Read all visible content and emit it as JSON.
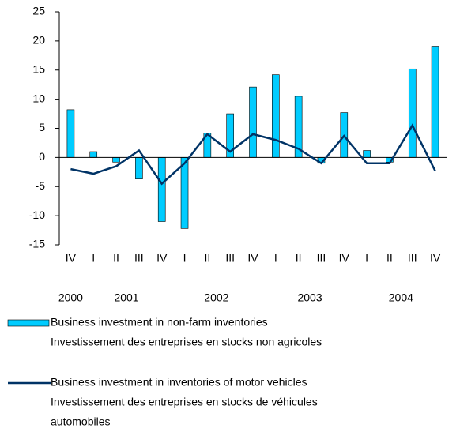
{
  "chart_data": {
    "type": "bar",
    "categories": [
      "IV",
      "I",
      "II",
      "III",
      "IV",
      "I",
      "II",
      "III",
      "IV",
      "I",
      "II",
      "III",
      "IV",
      "I",
      "II",
      "III",
      "IV"
    ],
    "year_labels": [
      "2000",
      "2001",
      "2002",
      "2003",
      "2004"
    ],
    "series": [
      {
        "type": "bar",
        "name": [
          "Business investment in non-farm inventories",
          "Investissement des entreprises en stocks non agricoles"
        ],
        "color": "#00ccff",
        "values": [
          8.2,
          1.0,
          -0.8,
          -3.7,
          -11.0,
          -12.2,
          4.2,
          7.5,
          12.1,
          14.2,
          10.5,
          -1.0,
          7.7,
          1.2,
          -0.8,
          15.2,
          19.1
        ]
      },
      {
        "type": "line",
        "name": [
          "Business investment in inventories of motor vehicles",
          "Investissement des entreprises en stocks de véhicules",
          "automobiles"
        ],
        "color": "#003366",
        "values": [
          -2.0,
          -2.8,
          -1.5,
          1.2,
          -4.5,
          -1.0,
          4.0,
          1.0,
          4.0,
          3.0,
          1.5,
          -1.0,
          3.7,
          -1.0,
          -1.0,
          5.5,
          -2.3
        ]
      }
    ],
    "ylim": [
      -15,
      25
    ],
    "yticks": [
      -15,
      -10,
      -5,
      0,
      5,
      10,
      15,
      20,
      25
    ],
    "grid": false
  }
}
